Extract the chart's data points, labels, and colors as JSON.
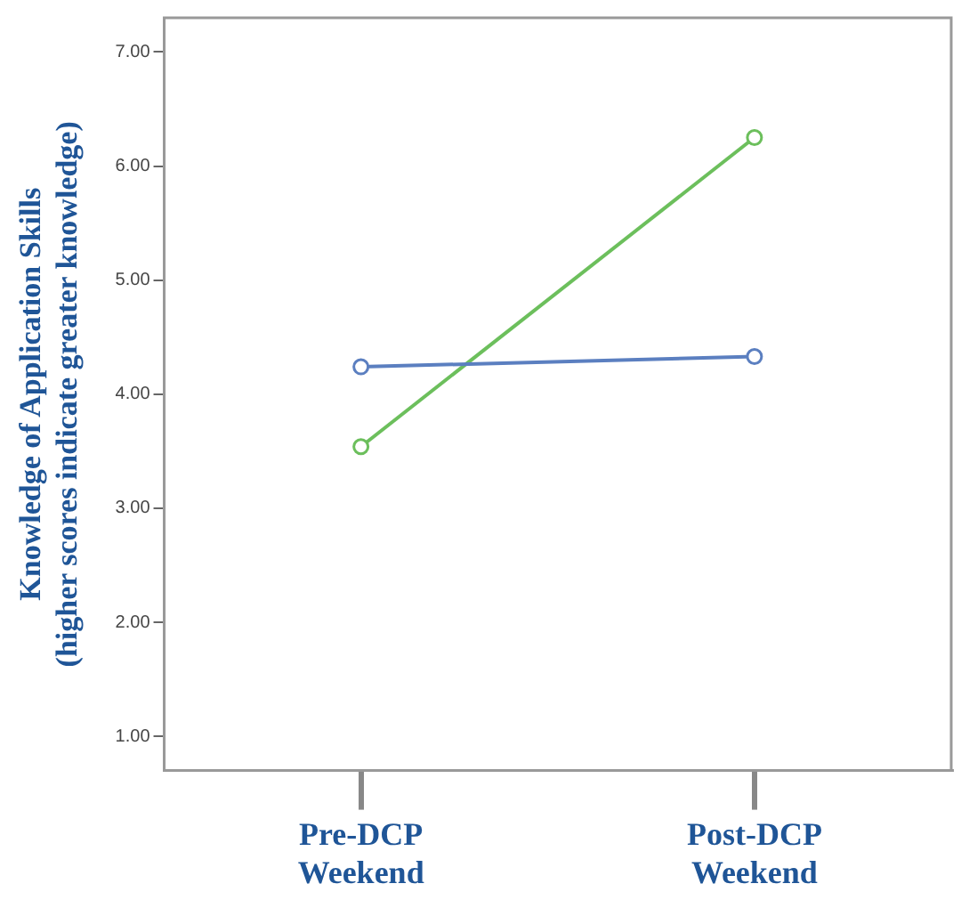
{
  "chart_data": {
    "type": "line",
    "ylabel": "Knowledge of Application Skills\n(higher scores indicate greater knowledge)",
    "categories": [
      "Pre-DCP\nWeekend",
      "Post-DCP\nWeekend"
    ],
    "series": [
      {
        "color": "#5b7fc0",
        "values": [
          4.24,
          4.33
        ]
      },
      {
        "color": "#6cbf5c",
        "values": [
          3.54,
          6.25
        ]
      }
    ],
    "ylim": [
      0.7,
      7.3
    ],
    "yticks": [
      {
        "value": 1,
        "label": "1.00"
      },
      {
        "value": 2,
        "label": "2.00"
      },
      {
        "value": 3,
        "label": "3.00"
      },
      {
        "value": 4,
        "label": "4.00"
      },
      {
        "value": 5,
        "label": "5.00"
      },
      {
        "value": 6,
        "label": "6.00"
      },
      {
        "value": 7,
        "label": "7.00"
      }
    ],
    "grid": false,
    "legend": false,
    "marker": "circle",
    "line_style": "solid"
  }
}
